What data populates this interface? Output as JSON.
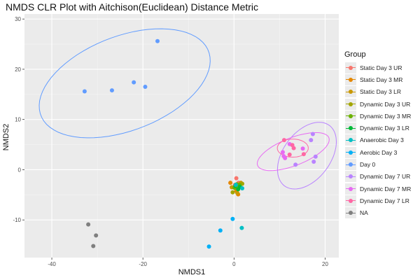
{
  "chart_data": {
    "type": "scatter",
    "title": "NMDS CLR Plot with Aitchison(Euclidean) Distance Metric",
    "xlabel": "NMDS1",
    "ylabel": "NMDS2",
    "xlim": [
      -46,
      23
    ],
    "ylim": [
      -17.5,
      31
    ],
    "x_ticks": [
      -40,
      -20,
      0,
      20
    ],
    "y_ticks": [
      -10,
      0,
      10,
      20,
      30
    ],
    "grid": true,
    "legend_title": "Group",
    "legend_position": "right",
    "series": [
      {
        "name": "Static Day 3 UR",
        "color": "#F8766D",
        "points": [
          [
            0.5,
            -1.7
          ],
          [
            1.0,
            -2.6
          ],
          [
            0.2,
            -3.0
          ]
        ]
      },
      {
        "name": "Static Day 3 MR",
        "color": "#E58700",
        "points": [
          [
            -0.8,
            -2.6
          ],
          [
            0.5,
            -4.2
          ],
          [
            0.9,
            -4.9
          ]
        ]
      },
      {
        "name": "Static Day 3 LR",
        "color": "#C99800",
        "points": [
          [
            1.5,
            -2.6
          ],
          [
            0.7,
            -4.6
          ],
          [
            -0.5,
            -3.5
          ]
        ]
      },
      {
        "name": "Dynamic Day 3 UR",
        "color": "#A3A500",
        "points": [
          [
            1.8,
            -2.8
          ],
          [
            -0.3,
            -4.5
          ],
          [
            0.8,
            -3.3
          ]
        ]
      },
      {
        "name": "Dynamic Day 3 MR",
        "color": "#6BB100",
        "points": [
          [
            1.2,
            -3.0
          ],
          [
            0.1,
            -3.6
          ],
          [
            0.6,
            -2.9
          ]
        ]
      },
      {
        "name": "Dynamic Day 3 LR",
        "color": "#00BA38",
        "points": [
          [
            0.3,
            -3.2
          ],
          [
            0.9,
            -3.9
          ],
          [
            1.3,
            -3.4
          ]
        ]
      },
      {
        "name": "Anaerobic Day 3",
        "color": "#00BFC4",
        "points": [
          [
            1.7,
            -11.6
          ],
          [
            1.8,
            -3.7
          ],
          [
            0.4,
            -3.0
          ]
        ]
      },
      {
        "name": "Aerobic Day 3",
        "color": "#00B0F6",
        "points": [
          [
            -3.0,
            -12.1
          ],
          [
            -0.3,
            -9.8
          ],
          [
            -5.5,
            -15.3
          ]
        ]
      },
      {
        "name": "Day 0",
        "color": "#619CFF",
        "points": [
          [
            -16.8,
            25.6
          ],
          [
            -22.0,
            17.4
          ],
          [
            -19.5,
            16.5
          ],
          [
            -26.8,
            15.8
          ],
          [
            -32.8,
            15.6
          ]
        ]
      },
      {
        "name": "Dynamic Day 7 UR",
        "color": "#B983FF",
        "points": [
          [
            17.3,
            7.1
          ],
          [
            16.9,
            5.9
          ],
          [
            17.9,
            2.6
          ],
          [
            17.5,
            1.6
          ],
          [
            13.5,
            1.0
          ]
        ]
      },
      {
        "name": "Dynamic Day 7 MR",
        "color": "#E76BF3",
        "points": [
          [
            10.7,
            3.5
          ],
          [
            12.2,
            5.1
          ],
          [
            15.1,
            4.2
          ],
          [
            11.2,
            2.3
          ],
          [
            10.9,
            2.7
          ]
        ]
      },
      {
        "name": "Dynamic Day 7 LR",
        "color": "#FF67A4",
        "points": [
          [
            11.0,
            5.9
          ],
          [
            12.8,
            4.9
          ],
          [
            13.1,
            4.3
          ],
          [
            12.2,
            3.0
          ],
          [
            15.3,
            3.1
          ]
        ]
      },
      {
        "name": "NA",
        "color": "#7F7F7F",
        "points": [
          [
            -32.0,
            -10.9
          ],
          [
            -30.3,
            -13.1
          ],
          [
            -30.9,
            -15.2
          ]
        ]
      }
    ],
    "ellipses": [
      {
        "series": "Day 0",
        "center": [
          -24.0,
          17.2
        ],
        "rx": 19.5,
        "ry": 9.5,
        "angle_deg": 18
      },
      {
        "series": "Dynamic Day 7 UR",
        "center": [
          16.0,
          2.8
        ],
        "rx": 7.8,
        "ry": 5.0,
        "angle_deg": 47
      },
      {
        "series": "Dynamic Day 7 MR",
        "center": [
          13.0,
          3.6
        ],
        "rx": 8.3,
        "ry": 2.8,
        "angle_deg": 19
      },
      {
        "series": "Dynamic Day 7 LR",
        "center": [
          12.9,
          4.3
        ],
        "rx": 3.4,
        "ry": 1.8,
        "angle_deg": 0
      }
    ]
  }
}
